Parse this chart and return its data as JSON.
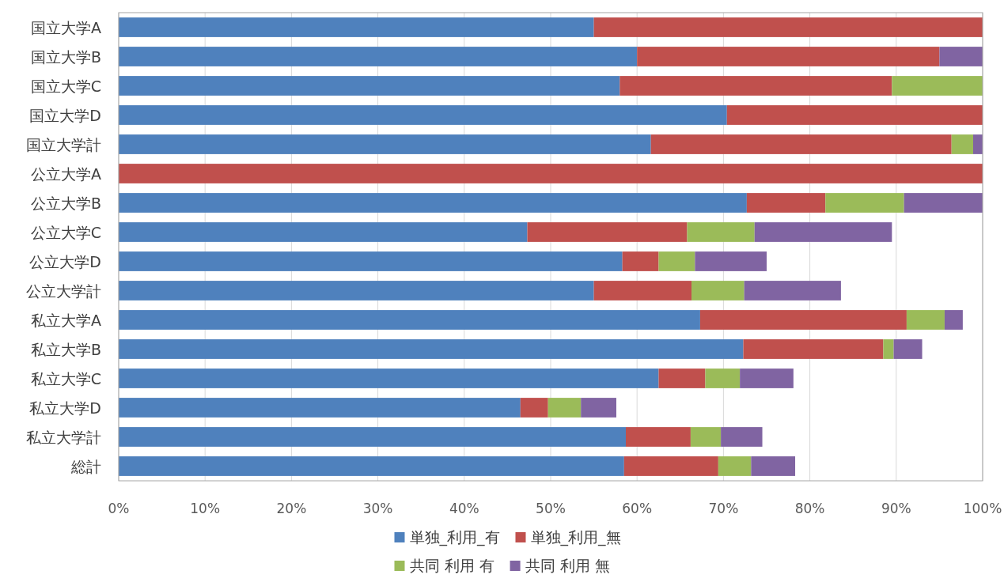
{
  "chart_data": {
    "type": "bar",
    "orientation": "horizontal",
    "stacked": true,
    "grid": "x",
    "legend": "bottom",
    "categories": [
      "国立大学A",
      "国立大学B",
      "国立大学C",
      "国立大学D",
      "国立大学計",
      "公立大学A",
      "公立大学B",
      "公立大学C",
      "公立大学D",
      "公立大学計",
      "私立大学A",
      "私立大学B",
      "私立大学C",
      "私立大学D",
      "私立大学計",
      "総計"
    ],
    "xlim": [
      0,
      100
    ],
    "xticks": [
      {
        "value": 0,
        "label": "0%"
      },
      {
        "value": 10,
        "label": "10%"
      },
      {
        "value": 20,
        "label": "20%"
      },
      {
        "value": 30,
        "label": "30%"
      },
      {
        "value": 40,
        "label": "40%"
      },
      {
        "value": 50,
        "label": "50%"
      },
      {
        "value": 60,
        "label": "60%"
      },
      {
        "value": 70,
        "label": "70%"
      },
      {
        "value": 80,
        "label": "80%"
      },
      {
        "value": 90,
        "label": "90%"
      },
      {
        "value": 100,
        "label": "100%"
      }
    ],
    "series": [
      {
        "name": "単独_利用_有",
        "color": "#4f81bd",
        "values": [
          55,
          60,
          58,
          70.4,
          61.6,
          0,
          72.7,
          47.3,
          58.3,
          55,
          67.3,
          72.3,
          62.5,
          46.5,
          58.7,
          58.5
        ]
      },
      {
        "name": "単独_利用_無",
        "color": "#c0504d",
        "values": [
          45,
          35,
          31.5,
          29.6,
          34.8,
          100,
          9.1,
          18.5,
          4.2,
          11.3,
          23.9,
          16.2,
          5.4,
          3.2,
          7.5,
          10.9
        ]
      },
      {
        "name": "共同 利用 有",
        "color": "#9bbb59",
        "values": [
          0,
          0,
          10.5,
          0,
          2.5,
          0,
          9.1,
          7.8,
          4.2,
          6.1,
          4.4,
          1.2,
          4,
          3.8,
          3.5,
          3.8
        ]
      },
      {
        "name": "共同 利用 無",
        "color": "#8064a2",
        "values": [
          0,
          5,
          0,
          0,
          1.1,
          0,
          9.1,
          15.9,
          8.3,
          11.2,
          2.1,
          3.3,
          6.2,
          4.1,
          4.8,
          5.1
        ]
      }
    ]
  }
}
